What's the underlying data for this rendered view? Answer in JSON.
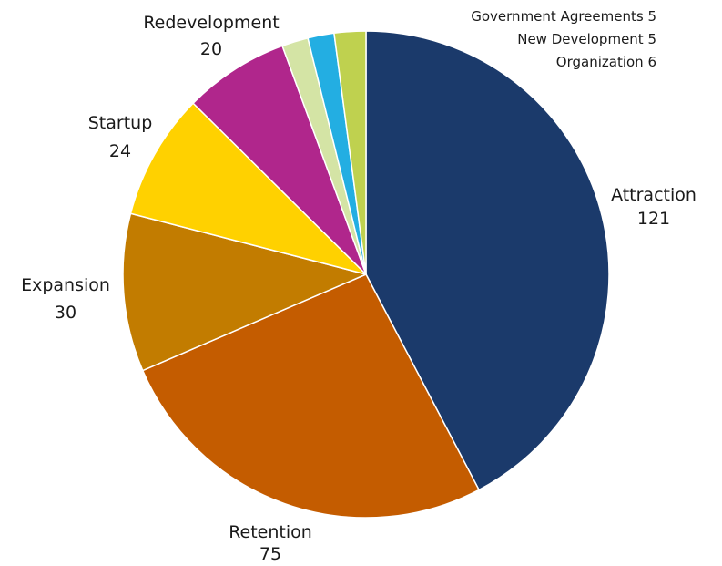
{
  "chart_data": {
    "type": "pie",
    "slices": [
      {
        "name": "Attraction",
        "value": 121,
        "color": "#1b3a6b"
      },
      {
        "name": "Retention",
        "value": 75,
        "color": "#c45c00"
      },
      {
        "name": "Expansion",
        "value": 30,
        "color": "#c27c00"
      },
      {
        "name": "Startup",
        "value": 24,
        "color": "#ffd100"
      },
      {
        "name": "Redevelopment",
        "value": 20,
        "color": "#b0268c"
      },
      {
        "name": "Government Agreements",
        "value": 5,
        "color": "#d4e4a5"
      },
      {
        "name": "New Development",
        "value": 5,
        "color": "#23aee2"
      },
      {
        "name": "Organization",
        "value": 6,
        "color": "#bfd14f"
      }
    ],
    "start_angle": "12 o'clock",
    "direction": "clockwise",
    "labels": {
      "attraction": {
        "name": "Attraction",
        "value": "121"
      },
      "retention": {
        "name": "Retention",
        "value": "75"
      },
      "expansion": {
        "name": "Expansion",
        "value": "30"
      },
      "startup": {
        "name": "Startup",
        "value": "24"
      },
      "redevelopment": {
        "name": "Redevelopment",
        "value": "20"
      },
      "government_agreements": "Government Agreements 5",
      "new_development": "New Development 5",
      "organization": "Organization 6"
    }
  }
}
